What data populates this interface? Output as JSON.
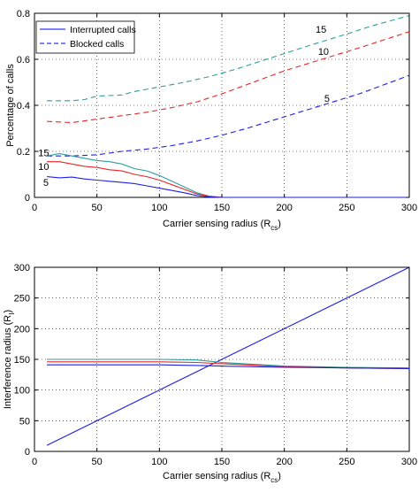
{
  "chart_data": [
    {
      "type": "line",
      "xlabel": "Carrier sensing radius (R",
      "xlabel_sub": "cs",
      "xlabel_close": ")",
      "ylabel": "Percentage of calls",
      "xlim": [
        0,
        300
      ],
      "ylim": [
        0,
        0.8
      ],
      "xticks": [
        0,
        50,
        100,
        150,
        200,
        250,
        300
      ],
      "yticks": [
        0,
        0.2,
        0.4,
        0.6,
        0.8
      ],
      "xtick_labels": [
        "0",
        "50",
        "100",
        "150",
        "200",
        "250",
        "300"
      ],
      "ytick_labels": [
        "0",
        "0.2",
        "0.4",
        "0.6",
        "0.8"
      ],
      "grid": true,
      "legend": {
        "position": "top-left",
        "entries": [
          {
            "label": "Interrupted calls",
            "style": "solid",
            "color": "#0000ff"
          },
          {
            "label": "Blocked calls",
            "style": "dashed",
            "color": "#0000ff"
          }
        ]
      },
      "series": [
        {
          "group": "blocked",
          "dashed": true,
          "color": "#2e9e9e",
          "x": [
            10,
            30,
            40,
            50,
            70,
            80,
            100,
            120,
            140,
            160,
            180,
            200,
            220,
            250,
            270,
            300
          ],
          "y": [
            0.42,
            0.42,
            0.425,
            0.44,
            0.445,
            0.46,
            0.48,
            0.5,
            0.525,
            0.555,
            0.59,
            0.625,
            0.66,
            0.71,
            0.745,
            0.79
          ]
        },
        {
          "group": "blocked",
          "dashed": true,
          "color": "#e8262a",
          "x": [
            10,
            30,
            50,
            70,
            90,
            110,
            130,
            150,
            170,
            200,
            230,
            260,
            300
          ],
          "y": [
            0.33,
            0.325,
            0.34,
            0.355,
            0.37,
            0.39,
            0.415,
            0.45,
            0.49,
            0.55,
            0.6,
            0.65,
            0.72
          ]
        },
        {
          "group": "blocked",
          "dashed": true,
          "color": "#1f1fe6",
          "x": [
            10,
            30,
            50,
            70,
            90,
            110,
            130,
            150,
            170,
            200,
            230,
            260,
            300
          ],
          "y": [
            0.18,
            0.18,
            0.185,
            0.2,
            0.21,
            0.225,
            0.245,
            0.27,
            0.3,
            0.35,
            0.4,
            0.45,
            0.53
          ]
        },
        {
          "group": "interrupted",
          "dashed": false,
          "color": "#2e9e9e",
          "x": [
            10,
            20,
            30,
            40,
            50,
            60,
            70,
            80,
            90,
            100,
            110,
            120,
            130,
            140,
            150,
            300
          ],
          "y": [
            0.18,
            0.19,
            0.18,
            0.17,
            0.16,
            0.155,
            0.145,
            0.125,
            0.115,
            0.095,
            0.07,
            0.045,
            0.02,
            0.005,
            0.0,
            0.0
          ]
        },
        {
          "group": "interrupted",
          "dashed": false,
          "color": "#e8262a",
          "x": [
            10,
            20,
            30,
            40,
            50,
            60,
            70,
            80,
            90,
            100,
            110,
            120,
            130,
            140,
            150,
            300
          ],
          "y": [
            0.155,
            0.155,
            0.145,
            0.135,
            0.13,
            0.12,
            0.115,
            0.1,
            0.09,
            0.075,
            0.055,
            0.035,
            0.015,
            0.005,
            0.0,
            0.0
          ]
        },
        {
          "group": "interrupted",
          "dashed": false,
          "color": "#1f1fe6",
          "x": [
            10,
            20,
            30,
            40,
            50,
            60,
            70,
            80,
            90,
            100,
            110,
            120,
            130,
            140,
            150,
            300
          ],
          "y": [
            0.09,
            0.085,
            0.088,
            0.08,
            0.075,
            0.07,
            0.065,
            0.06,
            0.05,
            0.04,
            0.03,
            0.02,
            0.008,
            0.002,
            0.0,
            0.0
          ]
        }
      ],
      "annotations": [
        {
          "text": "15",
          "x": 225,
          "y": 0.73
        },
        {
          "text": "10",
          "x": 227,
          "y": 0.635
        },
        {
          "text": "5",
          "x": 232,
          "y": 0.43
        },
        {
          "text": "15",
          "x": 3,
          "y": 0.195
        },
        {
          "text": "10",
          "x": 3,
          "y": 0.135
        },
        {
          "text": "5",
          "x": 7,
          "y": 0.065
        }
      ]
    },
    {
      "type": "line",
      "xlabel": "Carrier sensing radius (R",
      "xlabel_sub": "cs",
      "xlabel_close": ")",
      "ylabel": "Interference radius (R",
      "ylabel_sub": "I",
      "ylabel_close": ")",
      "xlim": [
        0,
        300
      ],
      "ylim": [
        0,
        300
      ],
      "xticks": [
        0,
        50,
        100,
        150,
        200,
        250,
        300
      ],
      "yticks": [
        0,
        50,
        100,
        150,
        200,
        250,
        300
      ],
      "xtick_labels": [
        "0",
        "50",
        "100",
        "150",
        "200",
        "250",
        "300"
      ],
      "ytick_labels": [
        "0",
        "50",
        "100",
        "150",
        "200",
        "250",
        "300"
      ],
      "grid": true,
      "series": [
        {
          "color": "#1f1fe6",
          "x": [
            10,
            300
          ],
          "y": [
            10,
            300
          ]
        },
        {
          "color": "#2e9e9e",
          "x": [
            10,
            50,
            100,
            130,
            150,
            200,
            250,
            300
          ],
          "y": [
            150,
            150,
            150,
            149,
            145,
            139,
            137,
            136
          ]
        },
        {
          "color": "#e8262a",
          "x": [
            10,
            50,
            100,
            130,
            150,
            200,
            250,
            300
          ],
          "y": [
            146,
            146,
            146,
            145,
            143,
            138,
            136,
            135
          ]
        },
        {
          "color": "#1f1fe6",
          "x": [
            10,
            50,
            100,
            130,
            150,
            200,
            250,
            300
          ],
          "y": [
            141,
            141,
            141,
            140,
            139,
            137,
            136,
            135
          ]
        }
      ]
    }
  ]
}
